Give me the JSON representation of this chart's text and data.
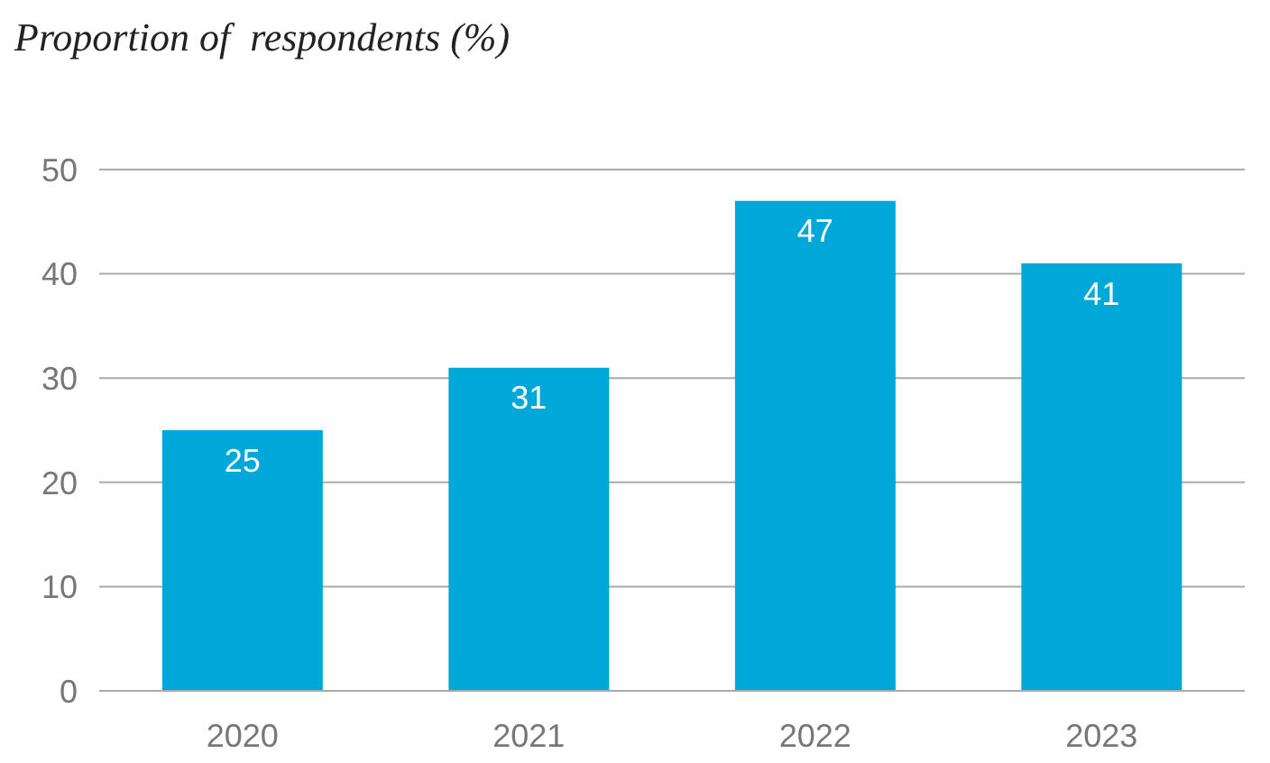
{
  "chart_data": {
    "type": "bar",
    "title": "Proportion of  respondents (%)",
    "categories": [
      "2020",
      "2021",
      "2022",
      "2023"
    ],
    "values": [
      25,
      31,
      47,
      41
    ],
    "color": "#00a8d9",
    "ylim": [
      0,
      50
    ],
    "yticks": [
      0,
      10,
      20,
      30,
      40,
      50
    ],
    "grid": "y",
    "data_labels": true
  }
}
